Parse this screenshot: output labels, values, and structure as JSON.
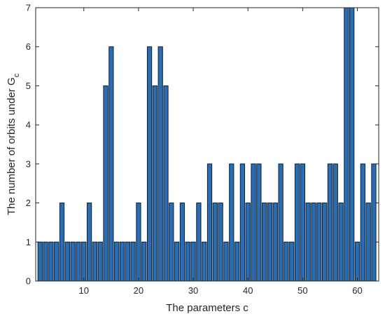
{
  "chart_data": {
    "type": "bar",
    "x": [
      2,
      3,
      4,
      5,
      6,
      7,
      8,
      9,
      10,
      11,
      12,
      13,
      14,
      15,
      16,
      17,
      18,
      19,
      20,
      21,
      22,
      23,
      24,
      25,
      26,
      27,
      28,
      29,
      30,
      31,
      32,
      33,
      34,
      35,
      36,
      37,
      38,
      39,
      40,
      41,
      42,
      43,
      44,
      45,
      46,
      47,
      48,
      49,
      50,
      51,
      52,
      53,
      54,
      55,
      56,
      57,
      58,
      59,
      60,
      61,
      62,
      63
    ],
    "values": [
      1,
      1,
      1,
      1,
      2,
      1,
      1,
      1,
      1,
      2,
      1,
      1,
      5,
      6,
      1,
      1,
      1,
      1,
      2,
      1,
      6,
      5,
      6,
      5,
      2,
      1,
      2,
      1,
      1,
      2,
      1,
      3,
      2,
      2,
      1,
      3,
      1,
      3,
      2,
      3,
      3,
      2,
      2,
      2,
      3,
      1,
      1,
      3,
      3,
      2,
      2,
      2,
      2,
      3,
      3,
      2,
      7,
      7,
      1,
      3,
      2,
      3
    ],
    "xlabel": "The parameters c",
    "ylabel_main": "The number of orbits under G",
    "ylabel_sub": "c",
    "xlim": [
      1.2,
      63.9
    ],
    "ylim": [
      0,
      7
    ],
    "xticks": [
      10,
      20,
      30,
      40,
      50,
      60
    ],
    "yticks": [
      0,
      1,
      2,
      3,
      4,
      5,
      6,
      7
    ],
    "grid": false,
    "bar_color": "#2a6db3",
    "edge_color": "#0d1f33"
  }
}
